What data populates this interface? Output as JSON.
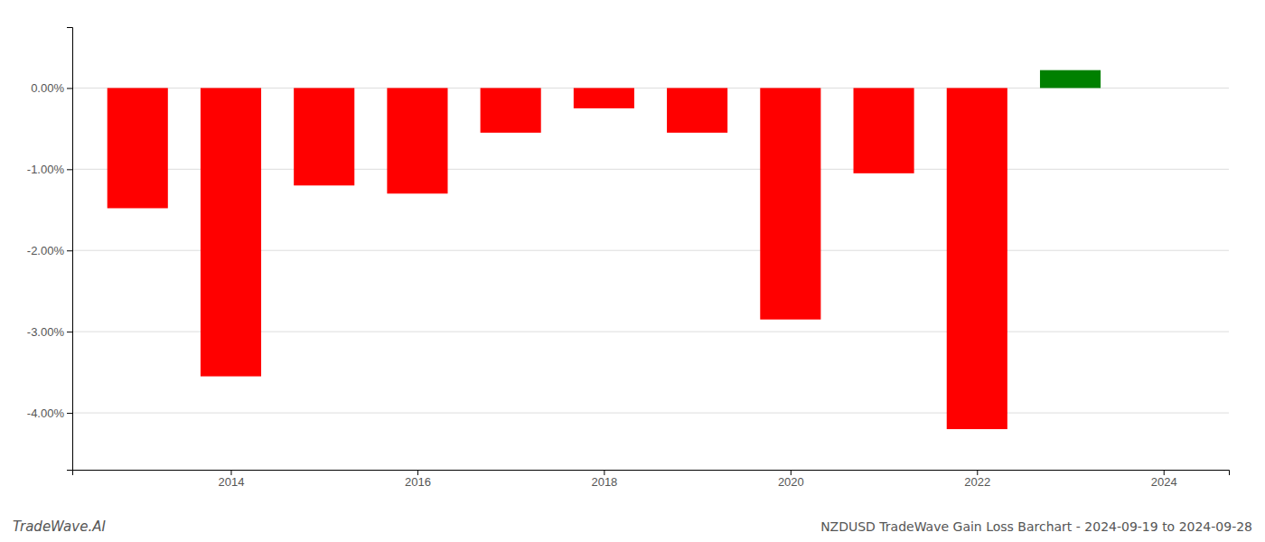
{
  "chart_data": {
    "type": "bar",
    "title": "NZDUSD TradeWave Gain Loss Barchart - 2024-09-19 to 2024-09-28",
    "annotations": [
      "TradeWave.AI"
    ],
    "x": [
      2013,
      2014,
      2015,
      2016,
      2017,
      2018,
      2019,
      2020,
      2021,
      2022,
      2023
    ],
    "values": [
      -0.0148,
      -0.0355,
      -0.012,
      -0.013,
      -0.0055,
      -0.0025,
      -0.0055,
      -0.0285,
      -0.0105,
      -0.042,
      0.0022
    ],
    "colors": [
      "#ff0000",
      "#ff0000",
      "#ff0000",
      "#ff0000",
      "#ff0000",
      "#ff0000",
      "#ff0000",
      "#ff0000",
      "#ff0000",
      "#ff0000",
      "#008000"
    ],
    "xlim": [
      2012.3,
      2024.7
    ],
    "xticks": [
      2014,
      2016,
      2018,
      2020,
      2022,
      2024
    ],
    "ylim": [
      -0.047,
      0.0075
    ],
    "yticks": [
      {
        "value": -0.04,
        "label": "-4.00%"
      },
      {
        "value": -0.03,
        "label": "-3.00%"
      },
      {
        "value": -0.02,
        "label": "-2.00%"
      },
      {
        "value": -0.01,
        "label": "-1.00%"
      },
      {
        "value": 0.0,
        "label": "0.00%"
      }
    ],
    "grid": true
  }
}
